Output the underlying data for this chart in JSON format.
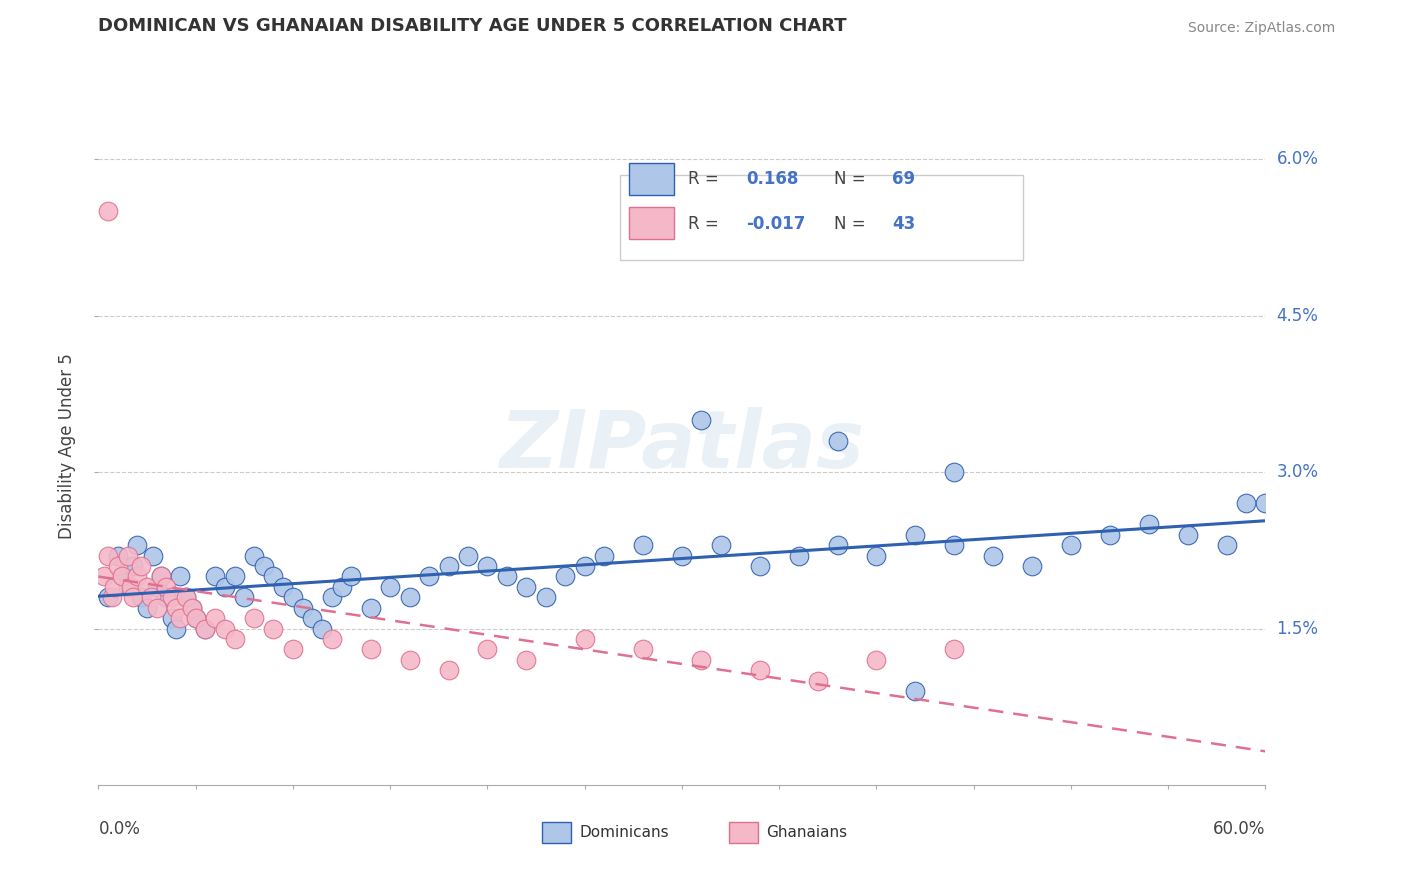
{
  "title": "DOMINICAN VS GHANAIAN DISABILITY AGE UNDER 5 CORRELATION CHART",
  "source": "Source: ZipAtlas.com",
  "ylabel": "Disability Age Under 5",
  "r_dominican": 0.168,
  "n_dominican": 69,
  "r_ghanaian": -0.017,
  "n_ghanaian": 43,
  "color_dominican": "#aec6e8",
  "color_ghanaian": "#f4b8c8",
  "line_color_dominican": "#3060b0",
  "line_color_ghanaian": "#e07090",
  "xmin": 0.0,
  "xmax": 0.6,
  "ymin": 0.0,
  "ymax": 0.065,
  "yticks": [
    0.015,
    0.03,
    0.045,
    0.06
  ],
  "ytick_labels": [
    "1.5%",
    "3.0%",
    "4.5%",
    "6.0%"
  ],
  "dominican_x": [
    0.005,
    0.01,
    0.012,
    0.015,
    0.018,
    0.02,
    0.022,
    0.025,
    0.028,
    0.03,
    0.032,
    0.035,
    0.038,
    0.04,
    0.042,
    0.045,
    0.048,
    0.05,
    0.055,
    0.06,
    0.065,
    0.07,
    0.075,
    0.08,
    0.085,
    0.09,
    0.095,
    0.1,
    0.105,
    0.11,
    0.115,
    0.12,
    0.125,
    0.13,
    0.14,
    0.15,
    0.16,
    0.17,
    0.18,
    0.19,
    0.2,
    0.21,
    0.22,
    0.23,
    0.24,
    0.25,
    0.26,
    0.28,
    0.3,
    0.32,
    0.34,
    0.36,
    0.38,
    0.4,
    0.42,
    0.44,
    0.46,
    0.48,
    0.5,
    0.52,
    0.54,
    0.56,
    0.58,
    0.6,
    0.44,
    0.38,
    0.31,
    0.42,
    0.59
  ],
  "dominican_y": [
    0.018,
    0.022,
    0.02,
    0.019,
    0.021,
    0.023,
    0.018,
    0.017,
    0.022,
    0.019,
    0.02,
    0.018,
    0.016,
    0.015,
    0.02,
    0.018,
    0.017,
    0.016,
    0.015,
    0.02,
    0.019,
    0.02,
    0.018,
    0.022,
    0.021,
    0.02,
    0.019,
    0.018,
    0.017,
    0.016,
    0.015,
    0.018,
    0.019,
    0.02,
    0.017,
    0.019,
    0.018,
    0.02,
    0.021,
    0.022,
    0.021,
    0.02,
    0.019,
    0.018,
    0.02,
    0.021,
    0.022,
    0.023,
    0.022,
    0.023,
    0.021,
    0.022,
    0.023,
    0.022,
    0.024,
    0.023,
    0.022,
    0.021,
    0.023,
    0.024,
    0.025,
    0.024,
    0.023,
    0.027,
    0.03,
    0.033,
    0.035,
    0.009,
    0.027
  ],
  "ghanaian_x": [
    0.003,
    0.005,
    0.007,
    0.008,
    0.01,
    0.012,
    0.015,
    0.017,
    0.018,
    0.02,
    0.022,
    0.025,
    0.027,
    0.03,
    0.032,
    0.035,
    0.038,
    0.04,
    0.042,
    0.045,
    0.048,
    0.05,
    0.055,
    0.06,
    0.065,
    0.07,
    0.08,
    0.09,
    0.1,
    0.12,
    0.14,
    0.16,
    0.18,
    0.2,
    0.22,
    0.25,
    0.28,
    0.31,
    0.34,
    0.37,
    0.4,
    0.44,
    0.005
  ],
  "ghanaian_y": [
    0.02,
    0.022,
    0.018,
    0.019,
    0.021,
    0.02,
    0.022,
    0.019,
    0.018,
    0.02,
    0.021,
    0.019,
    0.018,
    0.017,
    0.02,
    0.019,
    0.018,
    0.017,
    0.016,
    0.018,
    0.017,
    0.016,
    0.015,
    0.016,
    0.015,
    0.014,
    0.016,
    0.015,
    0.013,
    0.014,
    0.013,
    0.012,
    0.011,
    0.013,
    0.012,
    0.014,
    0.013,
    0.012,
    0.011,
    0.01,
    0.012,
    0.013,
    0.055
  ]
}
